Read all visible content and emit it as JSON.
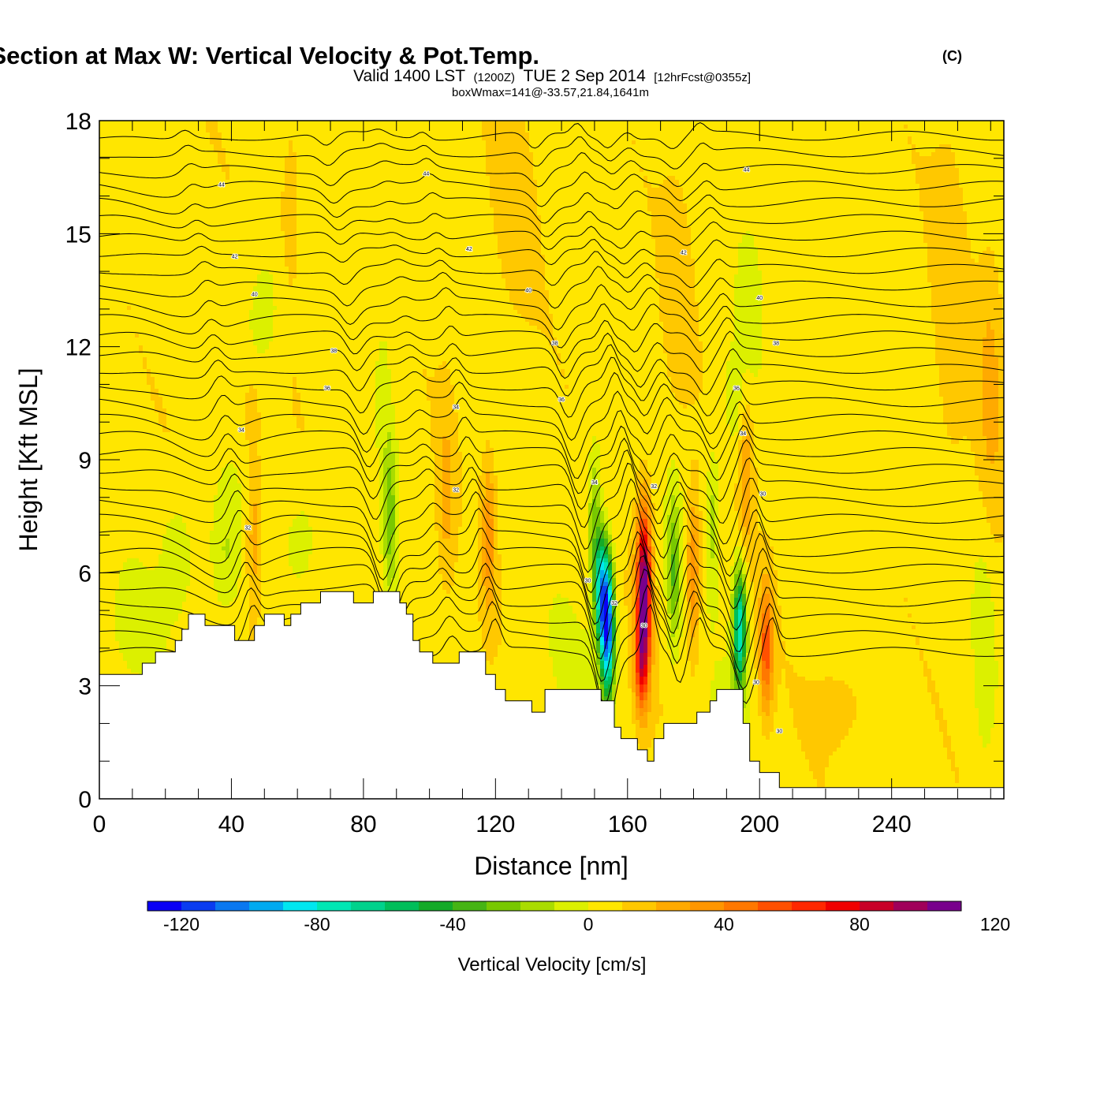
{
  "chart_data": {
    "type": "heatmap",
    "title": "Wind-Parallel Section at Max W: Vertical Velocity & Pot.Temp.",
    "title_mark": "(C)",
    "subtitle_main_a": "Valid 1400 LST",
    "subtitle_small_a": "(1200Z)",
    "subtitle_main_b": "TUE 2 Sep 2014",
    "subtitle_small_b": "[12hrFcst@0355z]",
    "subtitle2": "boxWmax=141@-33.57,21.84,1641m",
    "xlabel": "Distance [nm]",
    "ylabel": "Height [Kft MSL]",
    "xlim": [
      0,
      274
    ],
    "ylim": [
      0,
      18
    ],
    "x_ticks": [
      "0",
      "40",
      "80",
      "120",
      "160",
      "200",
      "240"
    ],
    "y_ticks": [
      "0",
      "3",
      "6",
      "9",
      "12",
      "15",
      "18"
    ],
    "colorbar": {
      "label": "Vertical Velocity [cm/s]",
      "ticks": [
        "-120",
        "-80",
        "-40",
        "0",
        "40",
        "80",
        "120"
      ],
      "levels_min": -130,
      "levels_step": 10,
      "colors": [
        "#0a00f5",
        "#0a3cf0",
        "#0a78f0",
        "#00aaf0",
        "#00e6f0",
        "#00e6b4",
        "#00d28c",
        "#00be5a",
        "#14aa28",
        "#46b414",
        "#78c800",
        "#aadc00",
        "#dcf000",
        "#ffe600",
        "#ffc800",
        "#ffaa00",
        "#ff9600",
        "#ff7800",
        "#ff5000",
        "#ff2800",
        "#f00000",
        "#c80028",
        "#a0005a",
        "#78008c"
      ]
    },
    "terrain_kft": [
      [
        0,
        3.3
      ],
      [
        13,
        3.3
      ],
      [
        13,
        3.6
      ],
      [
        17,
        3.6
      ],
      [
        17,
        3.9
      ],
      [
        23,
        3.9
      ],
      [
        23,
        4.2
      ],
      [
        25,
        4.2
      ],
      [
        25,
        4.5
      ],
      [
        27,
        4.5
      ],
      [
        27,
        4.9
      ],
      [
        32,
        4.9
      ],
      [
        32,
        4.6
      ],
      [
        41,
        4.6
      ],
      [
        41,
        4.2
      ],
      [
        47,
        4.2
      ],
      [
        47,
        4.6
      ],
      [
        50,
        4.6
      ],
      [
        50,
        4.9
      ],
      [
        56,
        4.9
      ],
      [
        56,
        4.6
      ],
      [
        58,
        4.6
      ],
      [
        58,
        4.9
      ],
      [
        61,
        4.9
      ],
      [
        61,
        5.2
      ],
      [
        67,
        5.2
      ],
      [
        67,
        5.5
      ],
      [
        77,
        5.5
      ],
      [
        77,
        5.2
      ],
      [
        83,
        5.2
      ],
      [
        83,
        5.5
      ],
      [
        91,
        5.5
      ],
      [
        91,
        5.2
      ],
      [
        93,
        5.2
      ],
      [
        93,
        4.9
      ],
      [
        95,
        4.9
      ],
      [
        95,
        4.2
      ],
      [
        97,
        4.2
      ],
      [
        97,
        3.9
      ],
      [
        101,
        3.9
      ],
      [
        101,
        3.6
      ],
      [
        109,
        3.6
      ],
      [
        109,
        3.9
      ],
      [
        117,
        3.9
      ],
      [
        117,
        3.3
      ],
      [
        120,
        3.3
      ],
      [
        120,
        2.9
      ],
      [
        123,
        2.9
      ],
      [
        123,
        2.6
      ],
      [
        131,
        2.6
      ],
      [
        131,
        2.3
      ],
      [
        135,
        2.3
      ],
      [
        135,
        2.9
      ],
      [
        144,
        2.9
      ],
      [
        144,
        2.9
      ],
      [
        152,
        2.9
      ],
      [
        152,
        2.6
      ],
      [
        156,
        2.6
      ],
      [
        156,
        1.9
      ],
      [
        158,
        1.9
      ],
      [
        158,
        1.6
      ],
      [
        163,
        1.6
      ],
      [
        163,
        1.3
      ],
      [
        166,
        1.3
      ],
      [
        166,
        1.0
      ],
      [
        168,
        1.0
      ],
      [
        168,
        1.6
      ],
      [
        171,
        1.6
      ],
      [
        171,
        2.0
      ],
      [
        181,
        2.0
      ],
      [
        181,
        2.3
      ],
      [
        185,
        2.3
      ],
      [
        185,
        2.6
      ],
      [
        187,
        2.6
      ],
      [
        187,
        2.9
      ],
      [
        195,
        2.9
      ],
      [
        195,
        2.0
      ],
      [
        197,
        2.0
      ],
      [
        197,
        1.0
      ],
      [
        200,
        1.0
      ],
      [
        200,
        0.7
      ],
      [
        206,
        0.7
      ],
      [
        206,
        0.3
      ],
      [
        274,
        0.3
      ]
    ],
    "w_field": [
      {
        "x": 47,
        "y": 7.0,
        "sx": 2.5,
        "sy": 2.0,
        "amp": 22
      },
      {
        "x": 46,
        "y": 10.2,
        "sx": 2.5,
        "sy": 1.0,
        "amp": 12
      },
      {
        "x": 38,
        "y": 6.5,
        "sx": 5.0,
        "sy": 1.8,
        "amp": -18
      },
      {
        "x": 24,
        "y": 6.5,
        "sx": 5.0,
        "sy": 1.5,
        "amp": -15
      },
      {
        "x": 62,
        "y": 7.0,
        "sx": 5.0,
        "sy": 1.2,
        "amp": -10
      },
      {
        "x": 50,
        "y": 13.0,
        "sx": 6.0,
        "sy": 1.8,
        "amp": -14
      },
      {
        "x": 88,
        "y": 7.5,
        "sx": 2.0,
        "sy": 2.2,
        "amp": -30
      },
      {
        "x": 86,
        "y": 11.0,
        "sx": 2.0,
        "sy": 1.5,
        "amp": -12
      },
      {
        "x": 105,
        "y": 8.0,
        "sx": 2.5,
        "sy": 2.5,
        "amp": 16
      },
      {
        "x": 118,
        "y": 7.0,
        "sx": 2.0,
        "sy": 2.0,
        "amp": 28
      },
      {
        "x": 112,
        "y": 7.0,
        "sx": 1.5,
        "sy": 1.5,
        "amp": -10
      },
      {
        "x": 150,
        "y": 7.5,
        "sx": 2.0,
        "sy": 2.0,
        "amp": -30
      },
      {
        "x": 154,
        "y": 4.5,
        "sx": 2.0,
        "sy": 1.8,
        "amp": -115
      },
      {
        "x": 152,
        "y": 5.5,
        "sx": 2.0,
        "sy": 1.5,
        "amp": -80
      },
      {
        "x": 165,
        "y": 5.5,
        "sx": 2.2,
        "sy": 2.2,
        "amp": 105
      },
      {
        "x": 164,
        "y": 3.5,
        "sx": 2.0,
        "sy": 1.2,
        "amp": 40
      },
      {
        "x": 174,
        "y": 6.0,
        "sx": 2.0,
        "sy": 2.0,
        "amp": -35
      },
      {
        "x": 180,
        "y": 6.0,
        "sx": 2.0,
        "sy": 2.0,
        "amp": 35
      },
      {
        "x": 186,
        "y": 7.5,
        "sx": 2.0,
        "sy": 2.0,
        "amp": -20
      },
      {
        "x": 194,
        "y": 4.5,
        "sx": 2.0,
        "sy": 1.6,
        "amp": -85
      },
      {
        "x": 202,
        "y": 4.0,
        "sx": 2.0,
        "sy": 1.6,
        "amp": 50
      },
      {
        "x": 196,
        "y": 8.5,
        "sx": 2.0,
        "sy": 2.0,
        "amp": 22
      },
      {
        "x": 192,
        "y": 10.5,
        "sx": 3.0,
        "sy": 1.5,
        "amp": -14
      },
      {
        "x": 175,
        "y": 13.5,
        "sx": 4.0,
        "sy": 3.0,
        "amp": 10
      },
      {
        "x": 197,
        "y": 13.0,
        "sx": 3.5,
        "sy": 2.0,
        "amp": -10
      },
      {
        "x": 258,
        "y": 13.0,
        "sx": 5.0,
        "sy": 5.0,
        "amp": 10
      },
      {
        "x": 270,
        "y": 11.0,
        "sx": 4.0,
        "sy": 4.0,
        "amp": 15
      },
      {
        "x": 268,
        "y": 4.0,
        "sx": 3.0,
        "sy": 3.0,
        "amp": -12
      },
      {
        "x": 225,
        "y": 2.5,
        "sx": 8.0,
        "sy": 1.0,
        "amp": 10
      },
      {
        "x": 190,
        "y": 2.0,
        "sx": 5.0,
        "sy": 1.5,
        "amp": -8
      },
      {
        "x": 58,
        "y": 16.0,
        "sx": 4.0,
        "sy": 3.0,
        "amp": 10
      },
      {
        "x": 126,
        "y": 16.0,
        "sx": 6.0,
        "sy": 3.0,
        "amp": 8
      },
      {
        "x": 140,
        "y": 3.5,
        "sx": 10.0,
        "sy": 2.0,
        "amp": -5
      },
      {
        "x": 10,
        "y": 4.5,
        "sx": 8.0,
        "sy": 1.5,
        "amp": -10
      },
      {
        "x": 27,
        "y": 14.0,
        "sx": 6.0,
        "sy": 3.0,
        "amp": 3
      }
    ],
    "theta_contours": {
      "count": 32,
      "y_bottom": 3.9,
      "y_top": 17.6,
      "waves": [
        {
          "x": 89,
          "width": 3.5,
          "amp": -1.4
        },
        {
          "x": 105,
          "width": 3.0,
          "amp": 0.5
        },
        {
          "x": 118,
          "width": 2.5,
          "amp": 0.8
        },
        {
          "x": 152,
          "width": 3.5,
          "amp": -1.8
        },
        {
          "x": 165,
          "width": 2.5,
          "amp": 1.3
        },
        {
          "x": 174,
          "width": 2.5,
          "amp": -0.9
        },
        {
          "x": 180,
          "width": 2.5,
          "amp": 0.8
        },
        {
          "x": 194,
          "width": 3.5,
          "amp": -1.4
        },
        {
          "x": 202,
          "width": 2.5,
          "amp": 1.0
        },
        {
          "x": 46,
          "width": 3.0,
          "amp": 0.9
        },
        {
          "x": 40,
          "width": 12.0,
          "amp": -0.8
        }
      ]
    },
    "contour_labels": [
      {
        "x": 37,
        "y": 16.3,
        "text": "44"
      },
      {
        "x": 99,
        "y": 16.6,
        "text": "44"
      },
      {
        "x": 196,
        "y": 16.7,
        "text": "44"
      },
      {
        "x": 41,
        "y": 14.4,
        "text": "42"
      },
      {
        "x": 112,
        "y": 14.6,
        "text": "42"
      },
      {
        "x": 177,
        "y": 14.5,
        "text": "42"
      },
      {
        "x": 47,
        "y": 13.4,
        "text": "40"
      },
      {
        "x": 130,
        "y": 13.5,
        "text": "40"
      },
      {
        "x": 200,
        "y": 13.3,
        "text": "40"
      },
      {
        "x": 71,
        "y": 11.9,
        "text": "38"
      },
      {
        "x": 138,
        "y": 12.1,
        "text": "38"
      },
      {
        "x": 205,
        "y": 12.1,
        "text": "38"
      },
      {
        "x": 69,
        "y": 10.9,
        "text": "36"
      },
      {
        "x": 140,
        "y": 10.6,
        "text": "36"
      },
      {
        "x": 193,
        "y": 10.9,
        "text": "36"
      },
      {
        "x": 108,
        "y": 10.4,
        "text": "34"
      },
      {
        "x": 43,
        "y": 9.8,
        "text": "34"
      },
      {
        "x": 195,
        "y": 9.7,
        "text": "34"
      },
      {
        "x": 108,
        "y": 8.2,
        "text": "32"
      },
      {
        "x": 150,
        "y": 8.4,
        "text": "34"
      },
      {
        "x": 168,
        "y": 8.3,
        "text": "32"
      },
      {
        "x": 201,
        "y": 8.1,
        "text": "30"
      },
      {
        "x": 45,
        "y": 7.2,
        "text": "32"
      },
      {
        "x": 148,
        "y": 5.8,
        "text": "30"
      },
      {
        "x": 156,
        "y": 5.2,
        "text": "32"
      },
      {
        "x": 165,
        "y": 4.6,
        "text": "30"
      },
      {
        "x": 199,
        "y": 3.1,
        "text": "30"
      },
      {
        "x": 206,
        "y": 1.8,
        "text": "30"
      }
    ]
  }
}
